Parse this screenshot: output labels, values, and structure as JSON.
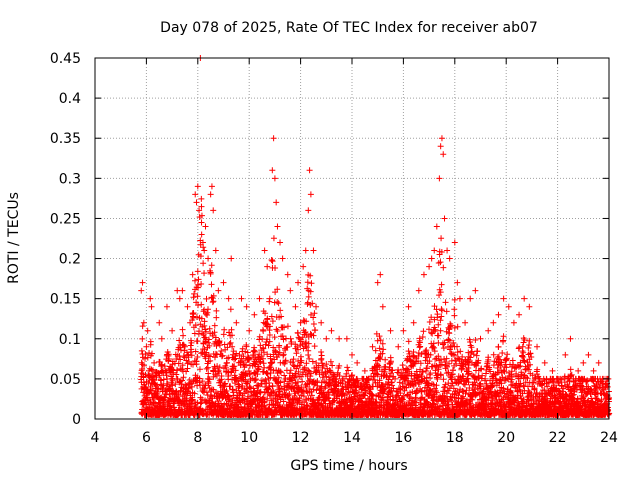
{
  "chart_data": {
    "type": "scatter",
    "title": "Day 078 of 2025, Rate Of TEC Index for receiver ab07",
    "xlabel": "GPS time / hours",
    "ylabel": "ROTI / TECUs",
    "xlim": [
      4,
      24
    ],
    "ylim": [
      0,
      0.45
    ],
    "xticks": [
      4,
      6,
      8,
      10,
      12,
      14,
      16,
      18,
      20,
      22,
      24
    ],
    "yticks": [
      0,
      0.05,
      0.1,
      0.15,
      0.2,
      0.25,
      0.3,
      0.35,
      0.4,
      0.45
    ],
    "xtick_labels": [
      "4",
      "6",
      "8",
      "10",
      "12",
      "14",
      "16",
      "18",
      "20",
      "22",
      "24"
    ],
    "ytick_labels": [
      "0",
      "0.05",
      "0.1",
      "0.15",
      "0.2",
      "0.25",
      "0.3",
      "0.35",
      "0.4",
      "0.45"
    ],
    "grid": true,
    "marker": "plus",
    "series": [
      {
        "name": "ROTI",
        "color": "#ff0000",
        "points": [
          [
            5.8,
            0.16
          ],
          [
            5.85,
            0.17
          ],
          [
            5.9,
            0.12
          ],
          [
            6.0,
            0.09
          ],
          [
            6.05,
            0.11
          ],
          [
            6.1,
            0.06
          ],
          [
            6.15,
            0.15
          ],
          [
            6.2,
            0.14
          ],
          [
            6.3,
            0.07
          ],
          [
            6.5,
            0.12
          ],
          [
            6.6,
            0.1
          ],
          [
            6.8,
            0.14
          ],
          [
            7.0,
            0.11
          ],
          [
            7.2,
            0.16
          ],
          [
            7.3,
            0.15
          ],
          [
            7.4,
            0.16
          ],
          [
            7.5,
            0.09
          ],
          [
            7.6,
            0.14
          ],
          [
            7.7,
            0.12
          ],
          [
            7.8,
            0.18
          ],
          [
            7.9,
            0.28
          ],
          [
            7.95,
            0.27
          ],
          [
            8.0,
            0.29
          ],
          [
            8.05,
            0.26
          ],
          [
            8.1,
            0.45
          ],
          [
            8.15,
            0.23
          ],
          [
            8.2,
            0.22
          ],
          [
            8.25,
            0.21
          ],
          [
            8.3,
            0.24
          ],
          [
            8.4,
            0.2
          ],
          [
            8.5,
            0.28
          ],
          [
            8.55,
            0.29
          ],
          [
            8.6,
            0.26
          ],
          [
            8.7,
            0.21
          ],
          [
            8.8,
            0.16
          ],
          [
            9.0,
            0.17
          ],
          [
            9.2,
            0.15
          ],
          [
            9.3,
            0.2
          ],
          [
            9.5,
            0.12
          ],
          [
            9.7,
            0.15
          ],
          [
            9.9,
            0.14
          ],
          [
            10.0,
            0.11
          ],
          [
            10.2,
            0.13
          ],
          [
            10.4,
            0.15
          ],
          [
            10.6,
            0.21
          ],
          [
            10.7,
            0.19
          ],
          [
            10.8,
            0.15
          ],
          [
            10.9,
            0.31
          ],
          [
            10.95,
            0.35
          ],
          [
            11.0,
            0.3
          ],
          [
            11.05,
            0.27
          ],
          [
            11.1,
            0.24
          ],
          [
            11.2,
            0.22
          ],
          [
            11.3,
            0.2
          ],
          [
            11.5,
            0.18
          ],
          [
            11.6,
            0.16
          ],
          [
            11.8,
            0.14
          ],
          [
            11.9,
            0.17
          ],
          [
            12.0,
            0.12
          ],
          [
            12.1,
            0.19
          ],
          [
            12.2,
            0.21
          ],
          [
            12.3,
            0.26
          ],
          [
            12.35,
            0.31
          ],
          [
            12.4,
            0.28
          ],
          [
            12.5,
            0.21
          ],
          [
            12.6,
            0.14
          ],
          [
            12.8,
            0.12
          ],
          [
            13.0,
            0.1
          ],
          [
            13.2,
            0.11
          ],
          [
            13.5,
            0.1
          ],
          [
            13.8,
            0.1
          ],
          [
            14.0,
            0.08
          ],
          [
            14.2,
            0.07
          ],
          [
            14.5,
            0.06
          ],
          [
            14.8,
            0.09
          ],
          [
            15.0,
            0.17
          ],
          [
            15.1,
            0.18
          ],
          [
            15.2,
            0.14
          ],
          [
            15.5,
            0.11
          ],
          [
            15.8,
            0.09
          ],
          [
            16.0,
            0.11
          ],
          [
            16.2,
            0.14
          ],
          [
            16.4,
            0.12
          ],
          [
            16.6,
            0.16
          ],
          [
            16.8,
            0.18
          ],
          [
            17.0,
            0.19
          ],
          [
            17.1,
            0.2
          ],
          [
            17.2,
            0.21
          ],
          [
            17.3,
            0.24
          ],
          [
            17.4,
            0.3
          ],
          [
            17.45,
            0.34
          ],
          [
            17.5,
            0.35
          ],
          [
            17.55,
            0.33
          ],
          [
            17.6,
            0.25
          ],
          [
            17.7,
            0.21
          ],
          [
            17.8,
            0.2
          ],
          [
            18.0,
            0.22
          ],
          [
            18.1,
            0.17
          ],
          [
            18.2,
            0.15
          ],
          [
            18.4,
            0.12
          ],
          [
            18.6,
            0.15
          ],
          [
            18.8,
            0.16
          ],
          [
            19.0,
            0.1
          ],
          [
            19.3,
            0.11
          ],
          [
            19.5,
            0.12
          ],
          [
            19.7,
            0.13
          ],
          [
            19.9,
            0.15
          ],
          [
            20.1,
            0.14
          ],
          [
            20.3,
            0.12
          ],
          [
            20.5,
            0.13
          ],
          [
            20.7,
            0.15
          ],
          [
            20.9,
            0.14
          ],
          [
            21.2,
            0.09
          ],
          [
            21.5,
            0.07
          ],
          [
            21.8,
            0.06
          ],
          [
            22.0,
            0.05
          ],
          [
            22.3,
            0.08
          ],
          [
            22.5,
            0.1
          ],
          [
            22.8,
            0.06
          ],
          [
            23.0,
            0.07
          ],
          [
            23.2,
            0.08
          ],
          [
            23.4,
            0.06
          ],
          [
            23.6,
            0.07
          ],
          [
            23.8,
            0.05
          ],
          [
            23.95,
            0.04
          ]
        ]
      }
    ]
  }
}
